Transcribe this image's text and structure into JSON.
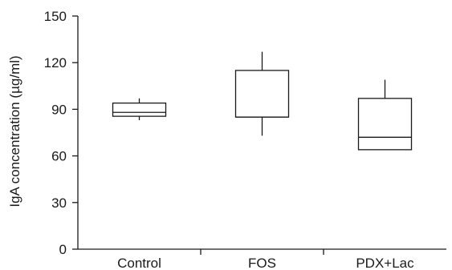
{
  "chart_data": {
    "type": "box",
    "title": "",
    "xlabel": "",
    "ylabel": "IgA concentration (µg/ml)",
    "ylim": [
      0,
      150
    ],
    "yticks": [
      0,
      30,
      60,
      90,
      120,
      150
    ],
    "ytick_labels": [
      "0",
      "30",
      "60",
      "90",
      "120",
      "150"
    ],
    "grid": false,
    "categories": [
      "Control",
      "FOS",
      "PDX+Lac"
    ],
    "boxes": [
      {
        "category": "Control",
        "whisker_low": 83,
        "q1": 85.5,
        "median": 88,
        "q3": 94,
        "whisker_high": 97
      },
      {
        "category": "FOS",
        "whisker_low": 73,
        "q1": 85,
        "median": 85,
        "q3": 115,
        "whisker_high": 127
      },
      {
        "category": "PDX+Lac",
        "whisker_low": 64,
        "q1": 64,
        "median": 72,
        "q3": 97,
        "whisker_high": 109
      }
    ]
  }
}
